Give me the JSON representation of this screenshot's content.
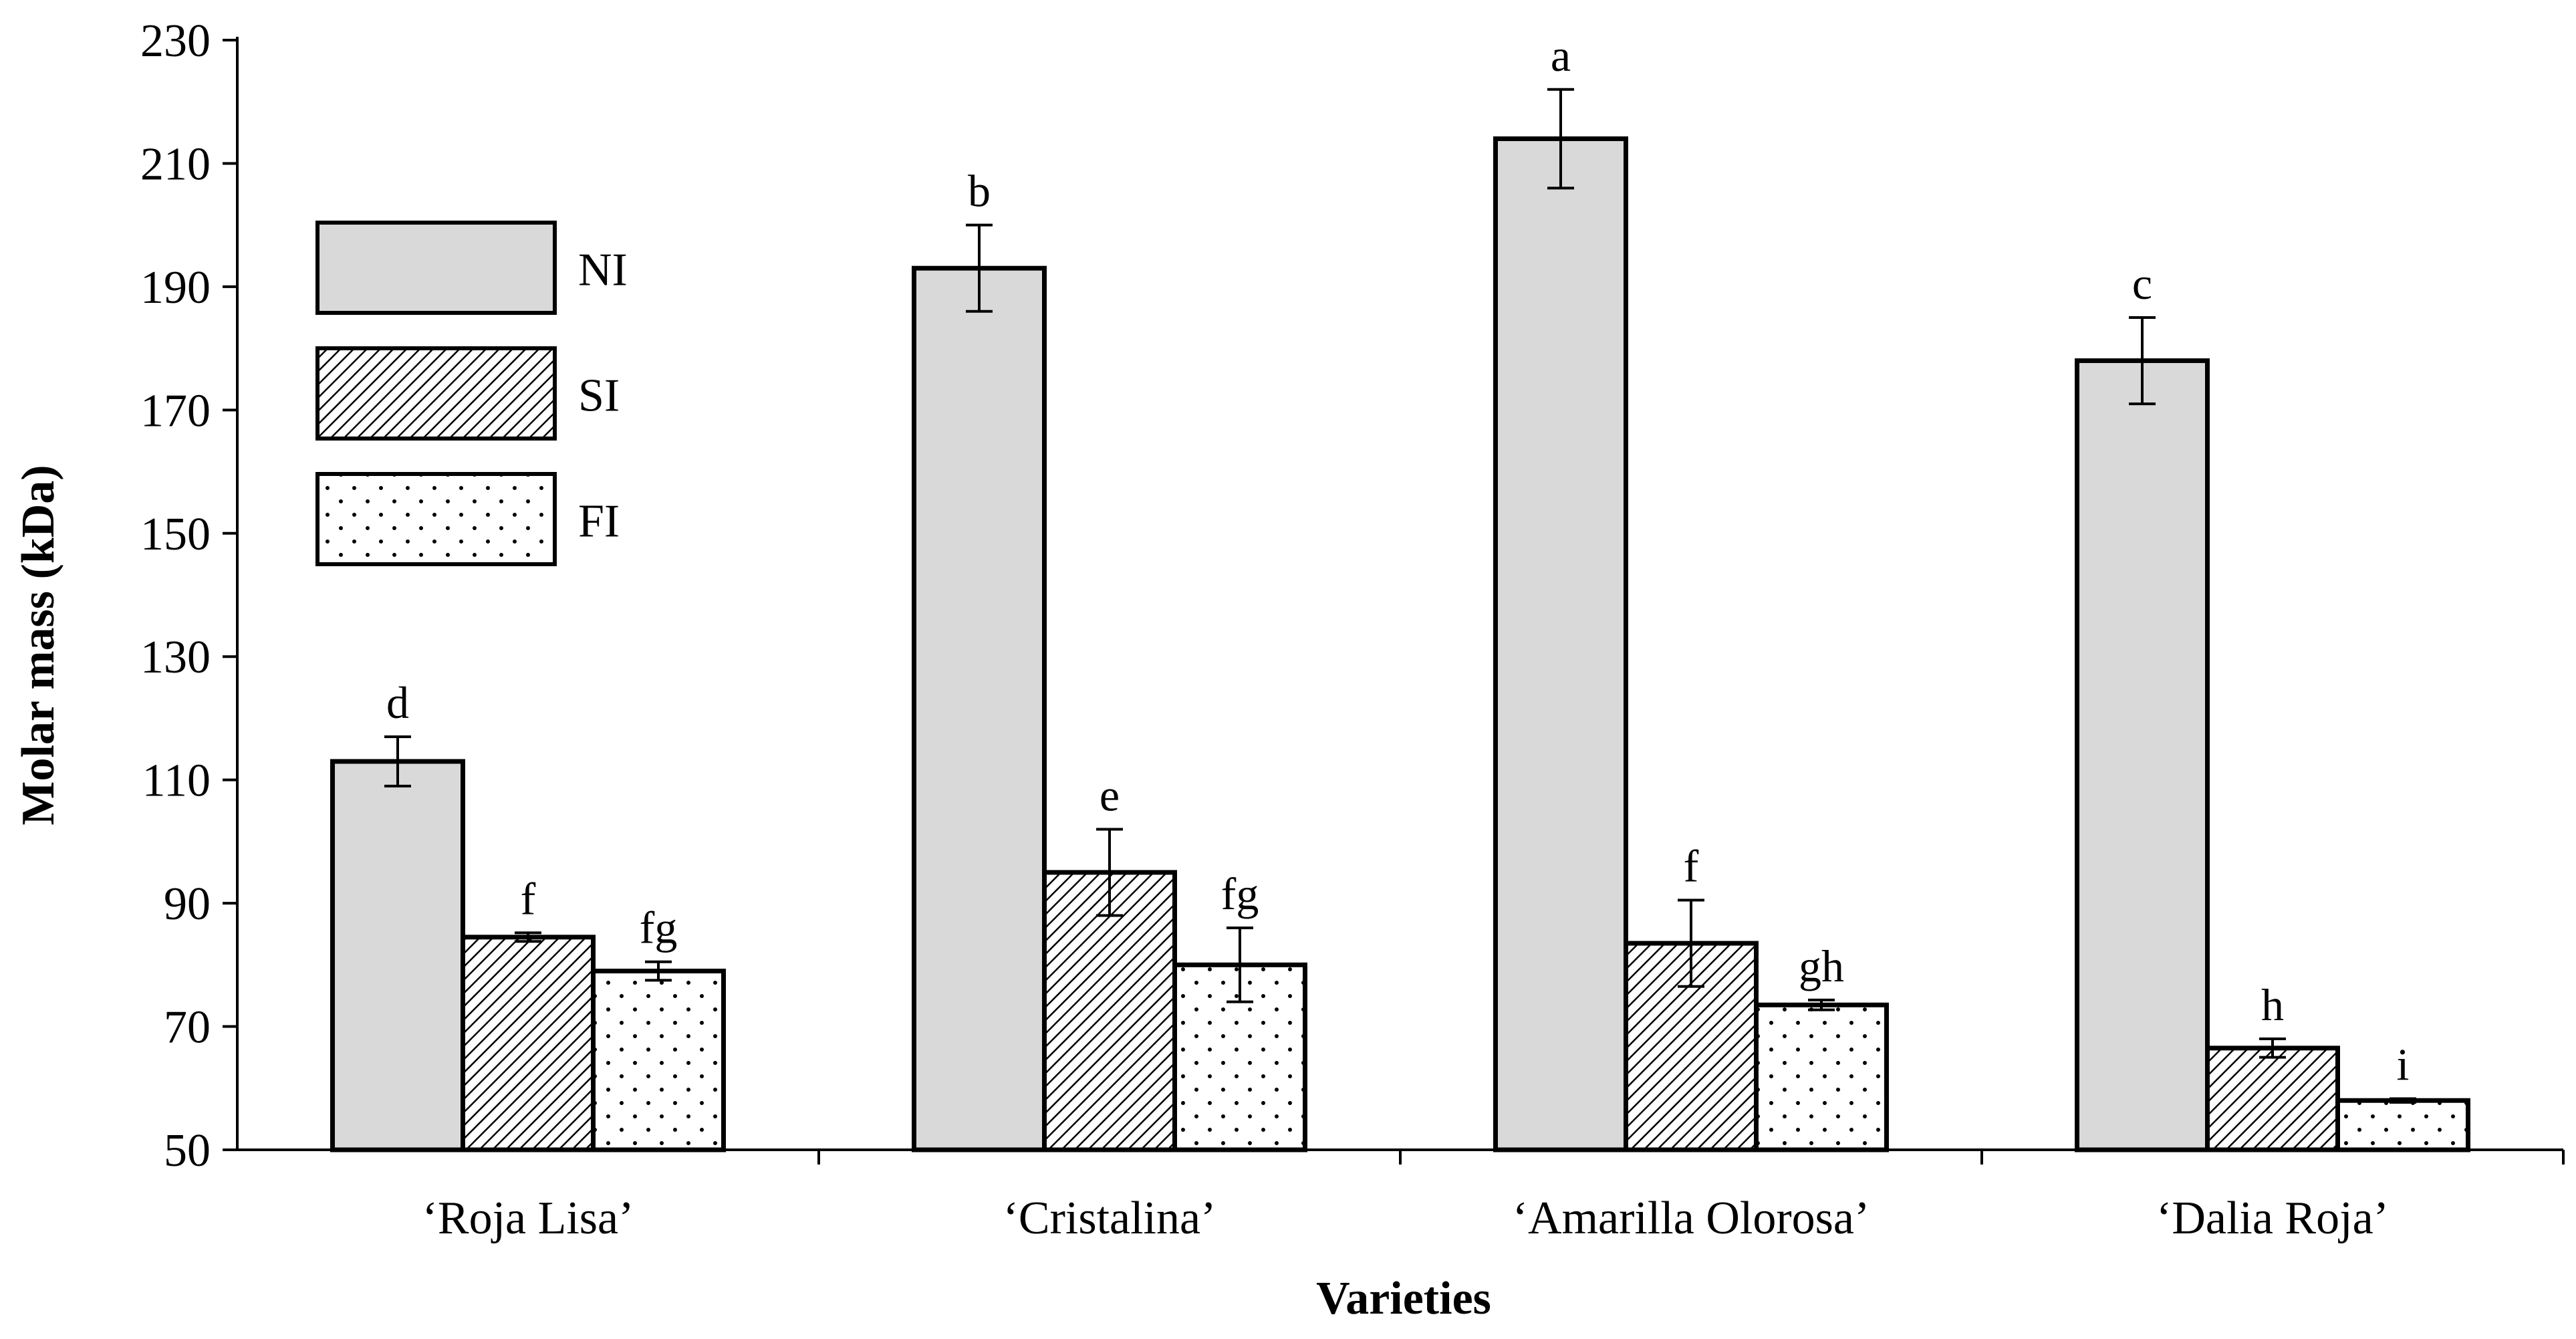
{
  "chart_data": {
    "type": "bar",
    "title": "",
    "xlabel": "Varieties",
    "ylabel": "Molar mass (kDa)",
    "ylim": [
      50,
      230
    ],
    "yticks": [
      50,
      70,
      90,
      110,
      130,
      150,
      170,
      190,
      210,
      230
    ],
    "grid": false,
    "legend_position": "top-left",
    "categories": [
      "‘Roja Lisa’",
      "‘Cristalina’",
      "‘Amarilla Olorosa’",
      "‘Dalia Roja’"
    ],
    "series": [
      {
        "name": "NI",
        "pattern": "solid-gray",
        "values": [
          113,
          193,
          214,
          178
        ],
        "errors": [
          4,
          7,
          8,
          7
        ],
        "labels": [
          "d",
          "b",
          "a",
          "c"
        ]
      },
      {
        "name": "SI",
        "pattern": "diagonal-hatch",
        "values": [
          84.5,
          95,
          83.5,
          66.5
        ],
        "errors": [
          0.7,
          7,
          7,
          1.5
        ],
        "labels": [
          "f",
          "e",
          "f",
          "h"
        ]
      },
      {
        "name": "FI",
        "pattern": "dots",
        "values": [
          79,
          80,
          73.5,
          58
        ],
        "errors": [
          1.5,
          6,
          0.8,
          0.3
        ],
        "labels": [
          "fg",
          "fg",
          "gh",
          "i"
        ]
      }
    ]
  },
  "colors": {
    "ni_fill": "#d9d9d9",
    "outline": "#000000",
    "background": "#ffffff"
  }
}
